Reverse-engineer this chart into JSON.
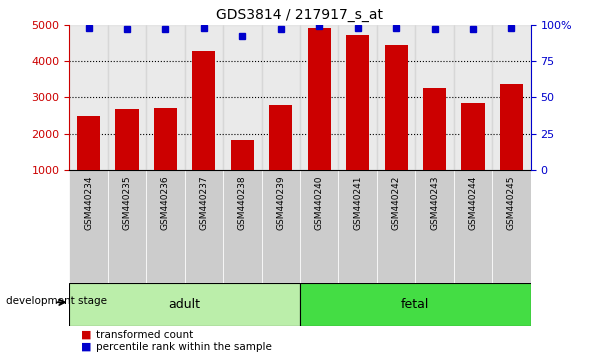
{
  "title": "GDS3814 / 217917_s_at",
  "samples": [
    "GSM440234",
    "GSM440235",
    "GSM440236",
    "GSM440237",
    "GSM440238",
    "GSM440239",
    "GSM440240",
    "GSM440241",
    "GSM440242",
    "GSM440243",
    "GSM440244",
    "GSM440245"
  ],
  "red_values": [
    2480,
    2670,
    2700,
    4270,
    1830,
    2790,
    4920,
    4730,
    4450,
    3270,
    2840,
    3360
  ],
  "blue_values": [
    98,
    97,
    97,
    98,
    92,
    97,
    99,
    98,
    98,
    97,
    97,
    98
  ],
  "ylim_left": [
    1000,
    5000
  ],
  "ylim_right": [
    0,
    100
  ],
  "yticks_left": [
    1000,
    2000,
    3000,
    4000,
    5000
  ],
  "yticks_right": [
    0,
    25,
    50,
    75,
    100
  ],
  "bar_color": "#cc0000",
  "blue_marker_color": "#0000cc",
  "adult_color": "#bbeeaa",
  "fetal_color": "#44dd44",
  "axis_color_left": "#cc0000",
  "axis_color_right": "#0000cc",
  "col_bg_color": "#cccccc",
  "legend_red_label": "transformed count",
  "legend_blue_label": "percentile rank within the sample",
  "dev_stage_label": "development stage",
  "adult_label": "adult",
  "fetal_label": "fetal",
  "n_adult": 6,
  "n_fetal": 6
}
